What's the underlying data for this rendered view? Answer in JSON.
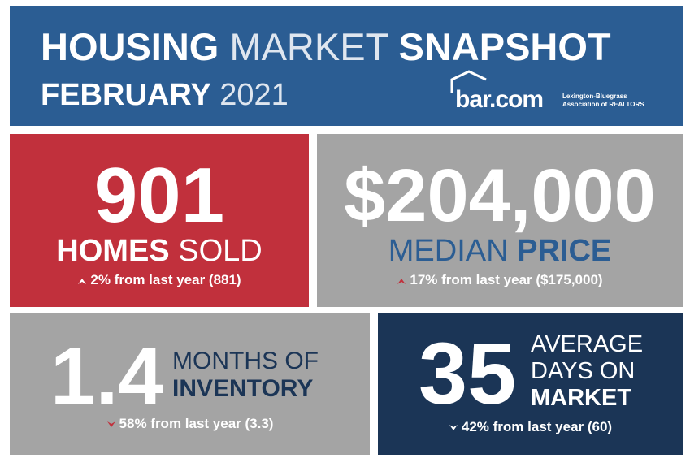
{
  "header": {
    "title_bold_1": "HOUSING",
    "title_light": "MARKET",
    "title_bold_2": "SNAPSHOT",
    "subtitle_bold": "FEBRUARY",
    "subtitle_light": "2021",
    "logo": "bar.com",
    "logo_line_1": "Lexington-Bluegrass",
    "logo_line_2": "Association of REALTORS"
  },
  "tiles": [
    {
      "value": "901",
      "label_bold": "HOMES",
      "label_light": "SOLD",
      "change": "2% from last year (881)"
    },
    {
      "value": "$204,000",
      "label_light": "MEDIAN",
      "label_bold": "PRICE",
      "change": "17% from last year ($175,000)"
    },
    {
      "value": "1.4",
      "label_light": "MONTHS OF",
      "label_bold": "INVENTORY",
      "change": "58% from last year (3.3)"
    },
    {
      "value": "35",
      "label_light_1": "AVERAGE",
      "label_light_2": "DAYS ON",
      "label_bold": "MARKET",
      "change": "42% from last year (60)"
    }
  ]
}
